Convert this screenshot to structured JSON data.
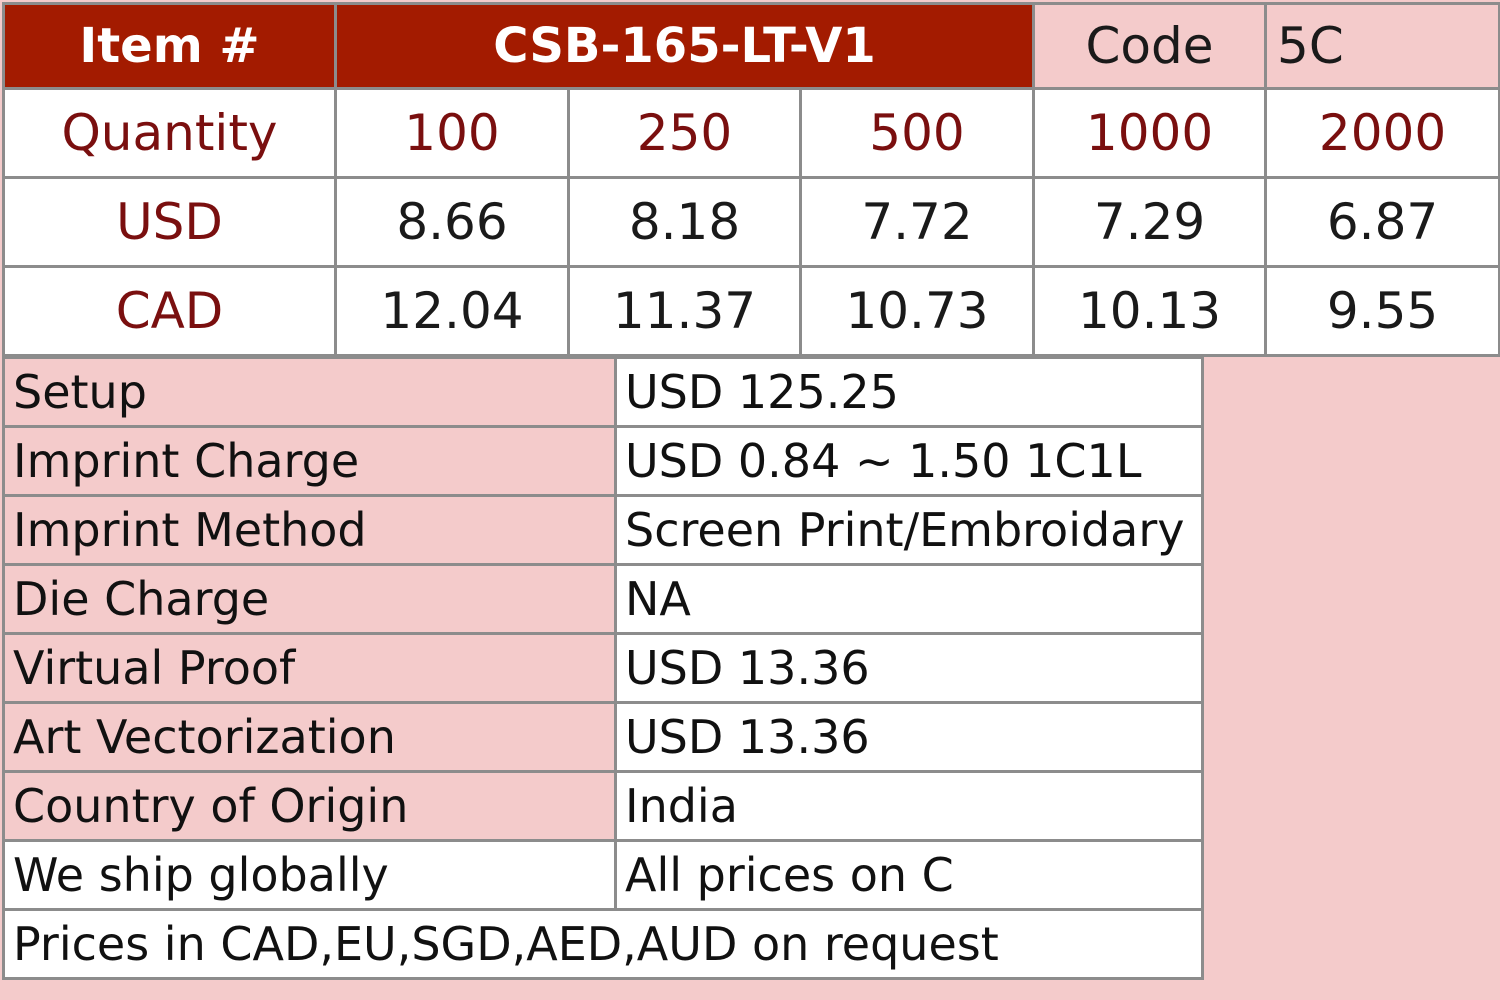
{
  "header": {
    "item_label": "Item #",
    "item_number": "CSB-165-LT-V1",
    "code_label": "Code",
    "code_value": "5C"
  },
  "quantity": {
    "label": "Quantity",
    "values": [
      "100",
      "250",
      "500",
      "1000",
      "2000"
    ]
  },
  "usd": {
    "label": "USD",
    "values": [
      "8.66",
      "8.18",
      "7.72",
      "7.29",
      "6.87"
    ]
  },
  "cad": {
    "label": "CAD",
    "values": [
      "12.04",
      "11.37",
      "10.73",
      "10.13",
      "9.55"
    ]
  },
  "details": [
    {
      "label": "Setup",
      "value": "USD 125.25"
    },
    {
      "label": "Imprint Charge",
      "value": "USD 0.84 ~ 1.50 1C1L"
    },
    {
      "label": "Imprint Method",
      "value": "Screen Print/Embroidary"
    },
    {
      "label": "Die Charge",
      "value": "NA"
    },
    {
      "label": "Virtual Proof",
      "value": "USD 13.36"
    },
    {
      "label": "Art Vectorization",
      "value": "USD 13.36"
    },
    {
      "label": "Country of Origin",
      "value": "India"
    },
    {
      "label": "We ship globally",
      "value": "All prices on C"
    }
  ],
  "footer_note": "Prices in CAD,EU,SGD,AED,AUD on request",
  "colors": {
    "header_bg": "#a31b00",
    "pink_bg": "#f4cbcb",
    "label_text": "#7a0f0f",
    "border": "#8c8c8c"
  }
}
